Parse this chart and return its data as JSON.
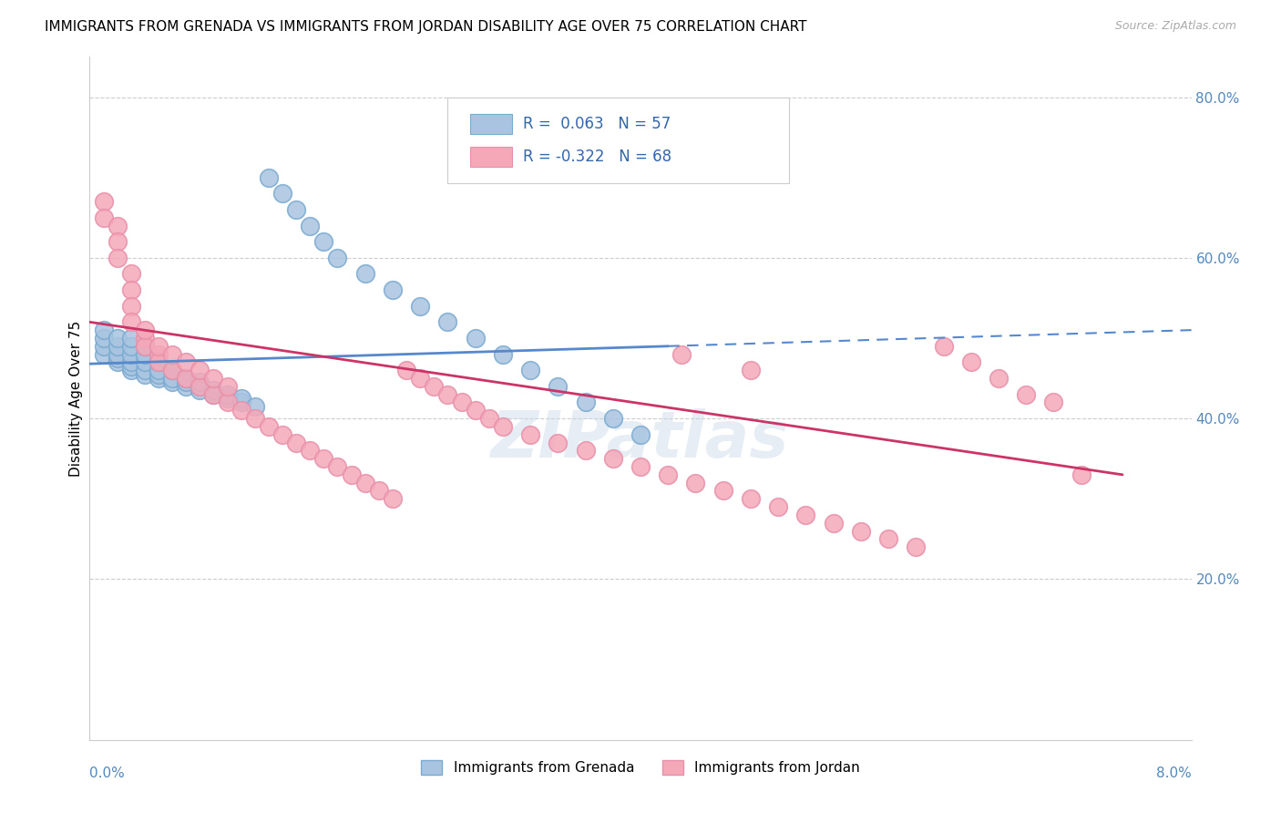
{
  "title": "IMMIGRANTS FROM GRENADA VS IMMIGRANTS FROM JORDAN DISABILITY AGE OVER 75 CORRELATION CHART",
  "source": "Source: ZipAtlas.com",
  "ylabel": "Disability Age Over 75",
  "right_yticks": [
    0.0,
    0.2,
    0.4,
    0.6,
    0.8
  ],
  "right_yticklabels": [
    "",
    "20.0%",
    "40.0%",
    "60.0%",
    "80.0%"
  ],
  "xlim": [
    0.0,
    0.08
  ],
  "ylim": [
    0.0,
    0.85
  ],
  "grenada_R": 0.063,
  "grenada_N": 57,
  "jordan_R": -0.322,
  "jordan_N": 68,
  "grenada_color": "#a8c4e0",
  "jordan_color": "#f4a8b8",
  "grenada_edge_color": "#7aaad0",
  "jordan_edge_color": "#e890aa",
  "trendline_grenada_color": "#5588cc",
  "trendline_jordan_color": "#cc3366",
  "watermark": "ZIPatlas",
  "grenada_x": [
    0.001,
    0.001,
    0.001,
    0.001,
    0.002,
    0.002,
    0.002,
    0.002,
    0.002,
    0.003,
    0.003,
    0.003,
    0.003,
    0.003,
    0.003,
    0.004,
    0.004,
    0.004,
    0.004,
    0.004,
    0.005,
    0.005,
    0.005,
    0.005,
    0.006,
    0.006,
    0.006,
    0.007,
    0.007,
    0.007,
    0.008,
    0.008,
    0.008,
    0.009,
    0.009,
    0.01,
    0.01,
    0.011,
    0.011,
    0.012,
    0.013,
    0.014,
    0.015,
    0.016,
    0.017,
    0.018,
    0.02,
    0.022,
    0.024,
    0.026,
    0.028,
    0.03,
    0.032,
    0.034,
    0.036,
    0.038,
    0.04
  ],
  "grenada_y": [
    0.48,
    0.49,
    0.5,
    0.51,
    0.47,
    0.475,
    0.48,
    0.49,
    0.5,
    0.46,
    0.465,
    0.47,
    0.48,
    0.49,
    0.5,
    0.455,
    0.46,
    0.47,
    0.48,
    0.49,
    0.45,
    0.455,
    0.46,
    0.47,
    0.445,
    0.45,
    0.46,
    0.44,
    0.445,
    0.45,
    0.435,
    0.44,
    0.445,
    0.43,
    0.435,
    0.425,
    0.43,
    0.42,
    0.425,
    0.415,
    0.7,
    0.68,
    0.66,
    0.64,
    0.62,
    0.6,
    0.58,
    0.56,
    0.54,
    0.52,
    0.5,
    0.48,
    0.46,
    0.44,
    0.42,
    0.4,
    0.38
  ],
  "jordan_x": [
    0.001,
    0.001,
    0.002,
    0.002,
    0.002,
    0.003,
    0.003,
    0.003,
    0.003,
    0.004,
    0.004,
    0.004,
    0.005,
    0.005,
    0.005,
    0.006,
    0.006,
    0.007,
    0.007,
    0.008,
    0.008,
    0.009,
    0.009,
    0.01,
    0.01,
    0.011,
    0.012,
    0.013,
    0.014,
    0.015,
    0.016,
    0.017,
    0.018,
    0.019,
    0.02,
    0.021,
    0.022,
    0.023,
    0.024,
    0.025,
    0.026,
    0.027,
    0.028,
    0.029,
    0.03,
    0.032,
    0.034,
    0.036,
    0.038,
    0.04,
    0.042,
    0.044,
    0.046,
    0.048,
    0.05,
    0.052,
    0.054,
    0.056,
    0.058,
    0.06,
    0.062,
    0.064,
    0.066,
    0.068,
    0.07,
    0.043,
    0.048,
    0.072
  ],
  "jordan_y": [
    0.67,
    0.65,
    0.64,
    0.62,
    0.6,
    0.58,
    0.56,
    0.54,
    0.52,
    0.5,
    0.49,
    0.51,
    0.48,
    0.47,
    0.49,
    0.46,
    0.48,
    0.45,
    0.47,
    0.44,
    0.46,
    0.43,
    0.45,
    0.42,
    0.44,
    0.41,
    0.4,
    0.39,
    0.38,
    0.37,
    0.36,
    0.35,
    0.34,
    0.33,
    0.32,
    0.31,
    0.3,
    0.46,
    0.45,
    0.44,
    0.43,
    0.42,
    0.41,
    0.4,
    0.39,
    0.38,
    0.37,
    0.36,
    0.35,
    0.34,
    0.33,
    0.32,
    0.31,
    0.3,
    0.29,
    0.28,
    0.27,
    0.26,
    0.25,
    0.24,
    0.49,
    0.47,
    0.45,
    0.43,
    0.42,
    0.48,
    0.46,
    0.33
  ],
  "grenada_line_x0": 0.0,
  "grenada_line_x1": 0.042,
  "grenada_line_x_dash0": 0.042,
  "grenada_line_x_dash1": 0.08,
  "grenada_line_y0": 0.468,
  "grenada_line_y1": 0.49,
  "grenada_line_y_dash1": 0.51,
  "jordan_line_x0": 0.0,
  "jordan_line_x1": 0.075,
  "jordan_line_y0": 0.52,
  "jordan_line_y1": 0.33
}
